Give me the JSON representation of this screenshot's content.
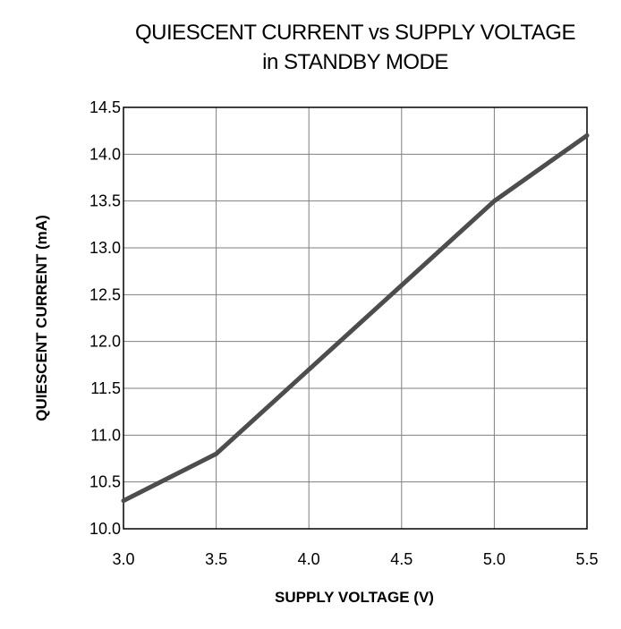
{
  "chart_data": {
    "type": "line",
    "title": [
      "QUIESCENT CURRENT vs SUPPLY VOLTAGE",
      "in STANDBY MODE"
    ],
    "xlabel": "SUPPLY VOLTAGE (V)",
    "ylabel": "QUIESCENT CURRENT (mA)",
    "xlim": [
      3.0,
      5.5
    ],
    "ylim": [
      10.0,
      14.5
    ],
    "x_ticks": [
      "3.0",
      "3.5",
      "4.0",
      "4.5",
      "5.0",
      "5.5"
    ],
    "y_ticks": [
      "10.0",
      "10.5",
      "11.0",
      "11.5",
      "12.0",
      "12.5",
      "13.0",
      "13.5",
      "14.0",
      "14.5"
    ],
    "grid": true,
    "legend": "none",
    "series": [
      {
        "color": "#4d4d4d",
        "x": [
          3.0,
          3.5,
          4.0,
          4.5,
          5.0,
          5.5
        ],
        "y": [
          10.3,
          10.8,
          11.7,
          12.6,
          13.5,
          14.2
        ]
      }
    ]
  }
}
